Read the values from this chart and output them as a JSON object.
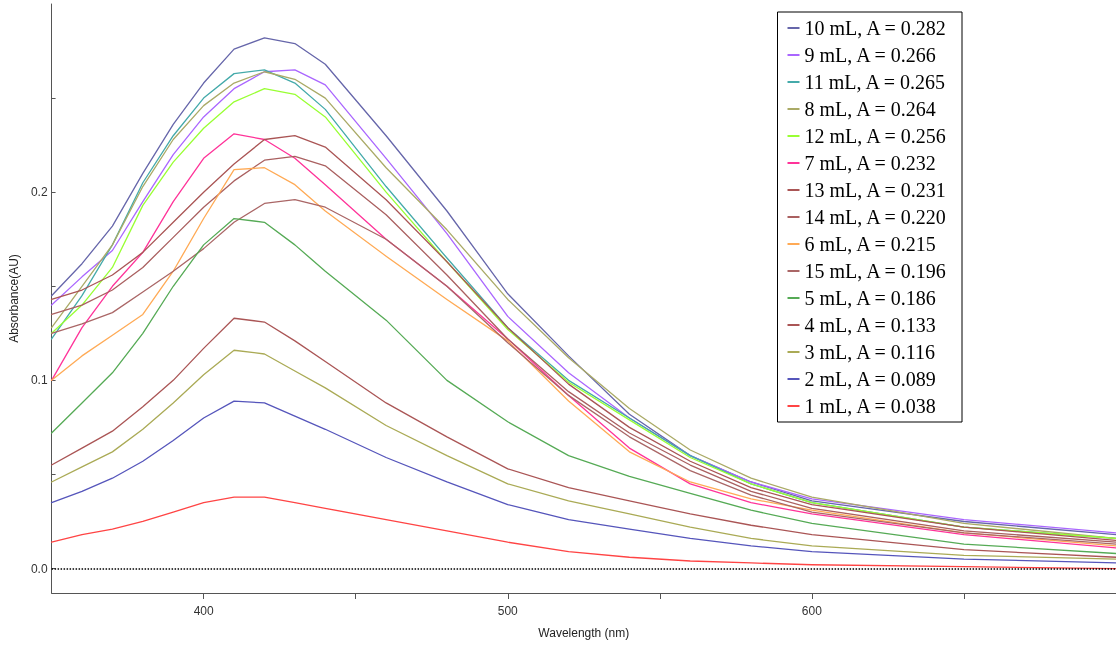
{
  "chart_data": {
    "type": "line",
    "xlabel": "Wavelength (nm)",
    "ylabel": "Absorbance(AU)",
    "x": [
      350,
      360,
      370,
      380,
      390,
      400,
      410,
      420,
      430,
      440,
      460,
      480,
      500,
      520,
      540,
      560,
      580,
      600,
      650,
      700
    ],
    "xlim": [
      350,
      700
    ],
    "xticks": [
      400,
      {
        "value": 450,
        "label": null
      },
      500,
      {
        "value": 550,
        "label": null
      },
      600,
      {
        "value": 650,
        "label": null
      }
    ],
    "ylim": [
      -0.013,
      0.3
    ],
    "yticks": [
      {
        "value": 0,
        "label": "0.0"
      },
      {
        "value": 0.05,
        "label": null
      },
      0.1,
      {
        "value": 0.15,
        "label": null
      },
      0.2,
      {
        "value": 0.25,
        "label": null
      }
    ],
    "grid": false,
    "legend": "top right",
    "marker": "none",
    "line_style": "solid",
    "ref_lines": [
      {
        "axis": "y",
        "value": 0,
        "color": "#000000",
        "line_style": "dotted"
      }
    ],
    "series": [
      {
        "name": "10 mL, A = 0.282",
        "color": "#6666aa",
        "values": [
          0.145,
          0.162,
          0.182,
          0.21,
          0.236,
          0.258,
          0.276,
          0.282,
          0.279,
          0.268,
          0.23,
          0.19,
          0.146,
          0.113,
          0.082,
          0.06,
          0.046,
          0.036,
          0.025,
          0.018
        ]
      },
      {
        "name": "9 mL, A = 0.266",
        "color": "#aa66ff",
        "values": [
          0.14,
          0.155,
          0.169,
          0.195,
          0.22,
          0.24,
          0.255,
          0.264,
          0.265,
          0.257,
          0.218,
          0.178,
          0.134,
          0.104,
          0.08,
          0.06,
          0.046,
          0.037,
          0.026,
          0.019
        ]
      },
      {
        "name": "11 mL, A = 0.265",
        "color": "#44aaaa",
        "values": [
          0.122,
          0.145,
          0.172,
          0.205,
          0.23,
          0.25,
          0.263,
          0.265,
          0.258,
          0.244,
          0.203,
          0.165,
          0.128,
          0.1,
          0.08,
          0.06,
          0.045,
          0.035,
          0.022,
          0.016
        ]
      },
      {
        "name": "8 mL, A = 0.264",
        "color": "#aaaa66",
        "values": [
          0.128,
          0.15,
          0.172,
          0.203,
          0.228,
          0.246,
          0.258,
          0.264,
          0.26,
          0.25,
          0.213,
          0.18,
          0.143,
          0.112,
          0.085,
          0.063,
          0.048,
          0.038,
          0.024,
          0.016
        ]
      },
      {
        "name": "12 mL, A = 0.256",
        "color": "#99ff33",
        "values": [
          0.125,
          0.14,
          0.16,
          0.193,
          0.216,
          0.234,
          0.248,
          0.255,
          0.252,
          0.24,
          0.2,
          0.163,
          0.127,
          0.099,
          0.079,
          0.059,
          0.045,
          0.035,
          0.022,
          0.016
        ]
      },
      {
        "name": "7 mL, A = 0.232",
        "color": "#ff3399",
        "values": [
          0.1,
          0.128,
          0.15,
          0.168,
          0.195,
          0.218,
          0.231,
          0.228,
          0.218,
          0.204,
          0.175,
          0.15,
          0.122,
          0.092,
          0.064,
          0.045,
          0.035,
          0.029,
          0.018,
          0.011
        ]
      },
      {
        "name": "13 mL, A = 0.231",
        "color": "#aa5555",
        "values": [
          0.143,
          0.148,
          0.156,
          0.168,
          0.184,
          0.2,
          0.215,
          0.228,
          0.23,
          0.224,
          0.196,
          0.163,
          0.128,
          0.098,
          0.075,
          0.057,
          0.043,
          0.034,
          0.022,
          0.015
        ]
      },
      {
        "name": "14 mL, A = 0.220",
        "color": "#aa6060",
        "values": [
          0.135,
          0.14,
          0.148,
          0.16,
          0.176,
          0.192,
          0.206,
          0.217,
          0.219,
          0.214,
          0.188,
          0.156,
          0.122,
          0.094,
          0.072,
          0.055,
          0.041,
          0.032,
          0.02,
          0.014
        ]
      },
      {
        "name": "6 mL, A = 0.215",
        "color": "#ffaa55",
        "values": [
          0.1,
          0.113,
          0.124,
          0.135,
          0.158,
          0.186,
          0.212,
          0.213,
          0.204,
          0.19,
          0.166,
          0.143,
          0.121,
          0.089,
          0.062,
          0.046,
          0.037,
          0.031,
          0.019,
          0.012
        ]
      },
      {
        "name": "15 mL, A = 0.196",
        "color": "#aa6666",
        "values": [
          0.125,
          0.13,
          0.136,
          0.147,
          0.158,
          0.17,
          0.184,
          0.194,
          0.196,
          0.192,
          0.175,
          0.15,
          0.12,
          0.092,
          0.07,
          0.052,
          0.039,
          0.03,
          0.019,
          0.013
        ]
      },
      {
        "name": "5 mL, A = 0.186",
        "color": "#55aa55",
        "values": [
          0.072,
          0.088,
          0.104,
          0.125,
          0.15,
          0.172,
          0.186,
          0.184,
          0.172,
          0.158,
          0.132,
          0.1,
          0.078,
          0.06,
          0.049,
          0.04,
          0.031,
          0.024,
          0.013,
          0.008
        ]
      },
      {
        "name": "4 mL, A = 0.133",
        "color": "#aa5555",
        "values": [
          0.055,
          0.064,
          0.073,
          0.086,
          0.1,
          0.117,
          0.133,
          0.131,
          0.121,
          0.11,
          0.088,
          0.07,
          0.053,
          0.043,
          0.036,
          0.029,
          0.023,
          0.018,
          0.01,
          0.006
        ]
      },
      {
        "name": "3 mL, A = 0.116",
        "color": "#aaaa55",
        "values": [
          0.046,
          0.054,
          0.062,
          0.074,
          0.088,
          0.103,
          0.116,
          0.114,
          0.105,
          0.096,
          0.076,
          0.06,
          0.045,
          0.036,
          0.029,
          0.022,
          0.016,
          0.012,
          0.007,
          0.005
        ]
      },
      {
        "name": "2 mL, A = 0.089",
        "color": "#5555bb",
        "values": [
          0.035,
          0.041,
          0.048,
          0.057,
          0.068,
          0.08,
          0.089,
          0.088,
          0.081,
          0.074,
          0.059,
          0.046,
          0.034,
          0.026,
          0.021,
          0.016,
          0.012,
          0.009,
          0.005,
          0.003
        ]
      },
      {
        "name": "1 mL, A = 0.038",
        "color": "#ff4444",
        "values": [
          0.014,
          0.018,
          0.021,
          0.025,
          0.03,
          0.035,
          0.038,
          0.038,
          0.035,
          0.032,
          0.026,
          0.02,
          0.014,
          0.009,
          0.006,
          0.004,
          0.003,
          0.002,
          0.001,
          0.0
        ]
      }
    ]
  }
}
